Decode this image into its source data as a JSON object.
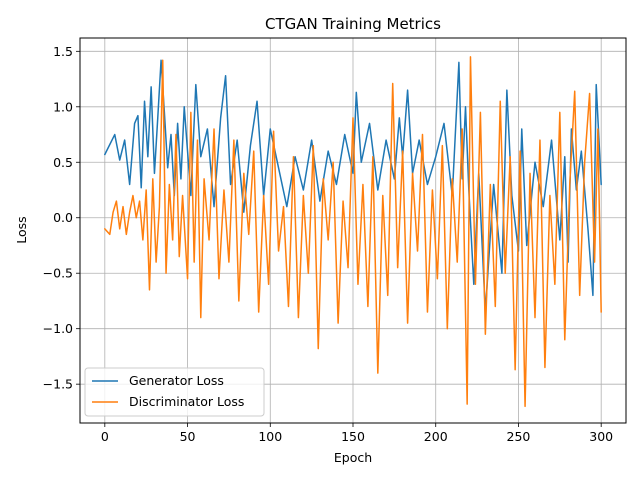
{
  "chart_data": {
    "type": "line",
    "title": "CTGAN Training Metrics",
    "xlabel": "Epoch",
    "ylabel": "Loss",
    "xlim": [
      -15,
      315
    ],
    "ylim": [
      -1.85,
      1.62
    ],
    "xticks": [
      0,
      50,
      100,
      150,
      200,
      250,
      300
    ],
    "yticks": [
      -1.5,
      -1.0,
      -0.5,
      0.0,
      0.5,
      1.0,
      1.5
    ],
    "ytick_labels": [
      "−1.5",
      "−1.0",
      "−0.5",
      "0.0",
      "0.5",
      "1.0",
      "1.5"
    ],
    "grid": true,
    "legend_position": "lower-left",
    "series": [
      {
        "name": "Generator Loss",
        "color": "#1f77b4",
        "x": [
          0,
          6,
          9,
          12,
          15,
          18,
          20,
          21,
          22,
          24,
          26,
          28,
          30,
          32,
          34,
          36,
          38,
          40,
          42,
          44,
          46,
          48,
          50,
          52,
          55,
          58,
          62,
          66,
          70,
          73,
          76,
          80,
          84,
          88,
          92,
          96,
          100,
          105,
          110,
          115,
          120,
          125,
          130,
          135,
          140,
          145,
          150,
          152,
          155,
          160,
          165,
          170,
          175,
          178,
          180,
          183,
          186,
          190,
          195,
          200,
          205,
          210,
          214,
          216,
          218,
          220,
          223,
          226,
          230,
          235,
          240,
          243,
          246,
          250,
          252,
          255,
          260,
          265,
          270,
          275,
          278,
          280,
          282,
          285,
          288,
          292,
          295,
          297,
          300
        ],
        "y": [
          0.57,
          0.75,
          0.52,
          0.7,
          0.3,
          0.85,
          0.92,
          0.6,
          0.27,
          1.05,
          0.55,
          1.18,
          0.4,
          0.9,
          1.42,
          0.95,
          0.45,
          0.75,
          0.2,
          0.85,
          0.35,
          1.0,
          0.6,
          0.2,
          1.2,
          0.55,
          0.8,
          0.1,
          0.9,
          1.28,
          0.3,
          0.7,
          0.05,
          0.65,
          1.05,
          0.2,
          0.8,
          0.45,
          0.1,
          0.55,
          0.25,
          0.7,
          0.15,
          0.6,
          0.3,
          0.75,
          0.4,
          1.13,
          0.5,
          0.85,
          0.25,
          0.7,
          0.35,
          0.9,
          0.55,
          1.15,
          0.4,
          0.7,
          0.3,
          0.55,
          0.85,
          0.2,
          1.4,
          0.35,
          1.0,
          0.25,
          -0.6,
          0.4,
          -0.85,
          0.3,
          -0.5,
          1.15,
          0.2,
          -0.3,
          0.8,
          -0.25,
          0.5,
          0.1,
          0.7,
          -0.2,
          0.55,
          -0.4,
          0.8,
          0.25,
          0.6,
          -0.1,
          -0.7,
          1.2,
          0.3
        ]
      },
      {
        "name": "Discriminator Loss",
        "color": "#ff7f0e",
        "x": [
          0,
          3,
          5,
          7,
          9,
          11,
          13,
          15,
          17,
          19,
          21,
          23,
          25,
          27,
          29,
          31,
          33,
          35,
          37,
          39,
          41,
          43,
          45,
          47,
          50,
          52,
          54,
          56,
          58,
          60,
          63,
          66,
          69,
          72,
          75,
          78,
          81,
          84,
          87,
          90,
          93,
          96,
          99,
          102,
          105,
          108,
          111,
          114,
          117,
          120,
          123,
          126,
          129,
          132,
          135,
          138,
          141,
          144,
          147,
          150,
          153,
          156,
          159,
          162,
          165,
          168,
          171,
          174,
          177,
          180,
          183,
          186,
          189,
          192,
          195,
          198,
          201,
          204,
          207,
          210,
          213,
          216,
          219,
          221,
          224,
          227,
          230,
          233,
          236,
          239,
          242,
          245,
          248,
          251,
          254,
          257,
          260,
          263,
          266,
          269,
          272,
          275,
          278,
          281,
          284,
          287,
          290,
          293,
          296,
          298,
          300
        ],
        "y": [
          -0.1,
          -0.15,
          0.05,
          0.15,
          -0.1,
          0.1,
          -0.15,
          0.05,
          0.2,
          0.0,
          0.15,
          -0.2,
          0.25,
          -0.65,
          0.35,
          -0.4,
          0.1,
          1.42,
          -0.5,
          0.3,
          -0.2,
          0.75,
          -0.35,
          0.2,
          -0.55,
          0.95,
          -0.4,
          0.7,
          -0.9,
          0.35,
          -0.2,
          0.8,
          -0.55,
          0.25,
          -0.4,
          0.7,
          -0.75,
          0.4,
          -0.15,
          0.6,
          -0.85,
          0.2,
          -0.6,
          0.78,
          -0.3,
          0.1,
          -0.8,
          0.55,
          -0.9,
          0.2,
          -0.5,
          0.65,
          -1.18,
          0.35,
          -0.2,
          0.5,
          -0.95,
          0.15,
          -0.45,
          0.9,
          -0.6,
          0.3,
          -0.8,
          0.55,
          -1.4,
          0.2,
          -0.7,
          1.21,
          -0.45,
          0.6,
          -0.95,
          0.4,
          -0.3,
          0.75,
          -0.85,
          0.25,
          -0.55,
          0.65,
          -1.0,
          0.35,
          -0.4,
          0.8,
          -1.68,
          1.45,
          -0.6,
          0.95,
          -1.05,
          0.3,
          -0.8,
          1.05,
          -0.5,
          0.55,
          -1.37,
          0.6,
          -1.7,
          0.4,
          -0.9,
          0.7,
          -1.35,
          0.2,
          -0.6,
          0.95,
          -1.1,
          0.3,
          1.14,
          -0.7,
          0.5,
          1.12,
          -0.4,
          0.8,
          -0.85
        ]
      }
    ]
  }
}
